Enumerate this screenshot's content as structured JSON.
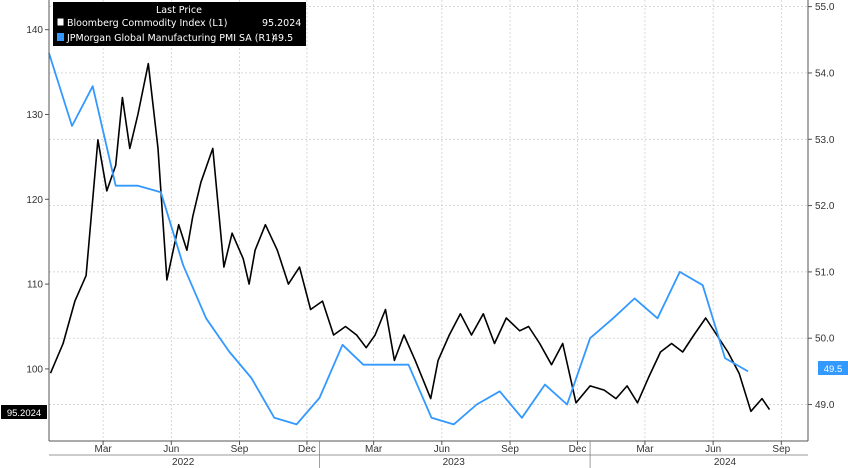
{
  "chart_data": {
    "type": "line",
    "legend_title": "Last Price",
    "legend_position": "top-left",
    "grid": true,
    "x_month_ticks": [
      "Mar",
      "Jun",
      "Sep",
      "Dec",
      "Mar",
      "Jun",
      "Sep",
      "Dec",
      "Mar",
      "Jun",
      "Sep"
    ],
    "x_year_ticks": [
      "2022",
      "2023",
      "2024"
    ],
    "left_axis": {
      "ylim": [
        91.5,
        143.5
      ],
      "ticks": [
        "100",
        "110",
        "120",
        "130",
        "140"
      ]
    },
    "right_axis": {
      "ylim": [
        48.45,
        55.1
      ],
      "ticks": [
        "49.0",
        "50.0",
        "51.0",
        "52.0",
        "53.0",
        "54.0",
        "55.0"
      ]
    },
    "series": [
      {
        "name": "Bloomberg Commodity Index  (L1)",
        "last_value": "95.2024",
        "axis": "left",
        "color": "#000000",
        "x": [
          "2022-01-03",
          "2022-01-20",
          "2022-02-05",
          "2022-02-20",
          "2022-03-08",
          "2022-03-20",
          "2022-04-01",
          "2022-04-10",
          "2022-04-20",
          "2022-05-01",
          "2022-05-15",
          "2022-05-28",
          "2022-06-09",
          "2022-06-25",
          "2022-07-06",
          "2022-07-14",
          "2022-07-25",
          "2022-08-10",
          "2022-08-25",
          "2022-09-05",
          "2022-09-20",
          "2022-09-28",
          "2022-10-06",
          "2022-10-20",
          "2022-11-05",
          "2022-11-20",
          "2022-12-05",
          "2022-12-20",
          "2023-01-05",
          "2023-01-20",
          "2023-02-05",
          "2023-02-20",
          "2023-03-05",
          "2023-03-17",
          "2023-03-31",
          "2023-04-12",
          "2023-04-25",
          "2023-05-10",
          "2023-05-31",
          "2023-06-10",
          "2023-06-25",
          "2023-07-10",
          "2023-07-25",
          "2023-08-10",
          "2023-08-25",
          "2023-09-10",
          "2023-09-28",
          "2023-10-10",
          "2023-10-25",
          "2023-11-10",
          "2023-11-25",
          "2023-12-13",
          "2024-01-01",
          "2024-01-20",
          "2024-02-05",
          "2024-02-20",
          "2024-03-05",
          "2024-03-20",
          "2024-04-05",
          "2024-04-20",
          "2024-05-05",
          "2024-05-20",
          "2024-06-05",
          "2024-06-20",
          "2024-07-05",
          "2024-07-20",
          "2024-08-05",
          "2024-08-20",
          "2024-08-30"
        ],
        "values": [
          99.5,
          103,
          108,
          111,
          127,
          121,
          124,
          132,
          126,
          130,
          136,
          126,
          110.5,
          117,
          114,
          118,
          122,
          126,
          112,
          116,
          113,
          110,
          114,
          117,
          114,
          110,
          112,
          107,
          108,
          104,
          105,
          104,
          102.5,
          104,
          107,
          101,
          104,
          101,
          96.5,
          101,
          104,
          106.5,
          104,
          106.5,
          103,
          106,
          104.5,
          105,
          103,
          100.5,
          103,
          96,
          98,
          97.5,
          96.5,
          98,
          96,
          99,
          102,
          103,
          102,
          104,
          106,
          104,
          102,
          99.5,
          95,
          96.5,
          95.2
        ]
      },
      {
        "name": "JPMorgan Global Manufacturing PMI SA  (R1)",
        "last_value": "49.5",
        "axis": "right",
        "color": "#3399ff",
        "x": [
          "2022-01-01",
          "2022-02-01",
          "2022-03-01",
          "2022-04-01",
          "2022-05-01",
          "2022-06-01",
          "2022-07-01",
          "2022-08-01",
          "2022-09-01",
          "2022-10-01",
          "2022-11-01",
          "2022-12-01",
          "2023-01-01",
          "2023-02-01",
          "2023-03-01",
          "2023-04-01",
          "2023-05-01",
          "2023-06-01",
          "2023-07-01",
          "2023-08-01",
          "2023-09-01",
          "2023-10-01",
          "2023-11-01",
          "2023-12-01",
          "2024-01-01",
          "2024-02-01",
          "2024-03-01",
          "2024-04-01",
          "2024-05-01",
          "2024-06-01",
          "2024-07-01",
          "2024-08-01"
        ],
        "values": [
          54.3,
          53.2,
          53.8,
          52.3,
          52.3,
          52.2,
          51.1,
          50.3,
          49.8,
          49.4,
          48.8,
          48.7,
          49.1,
          49.9,
          49.6,
          49.6,
          49.6,
          48.8,
          48.7,
          49.0,
          49.2,
          48.8,
          49.3,
          49.0,
          50.0,
          50.3,
          50.6,
          50.3,
          51.0,
          50.8,
          49.7,
          49.5
        ]
      }
    ]
  }
}
